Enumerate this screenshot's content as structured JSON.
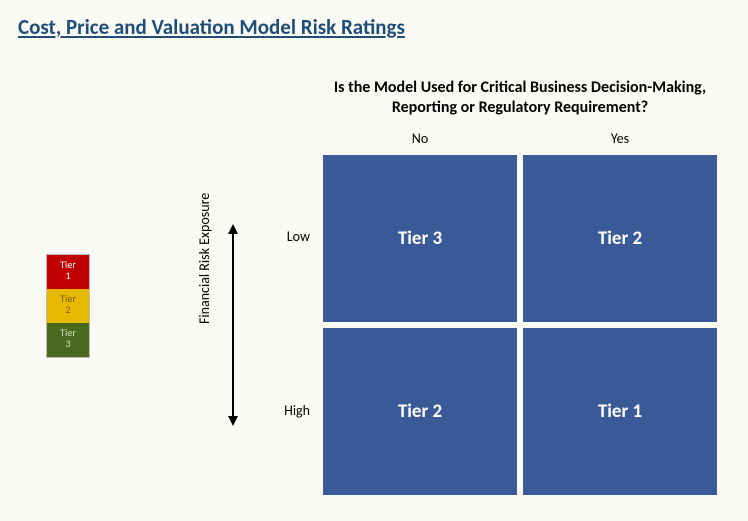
{
  "title": {
    "text": "Cost, Price and Valuation Model Risk Ratings",
    "color": "#1f4e79"
  },
  "question": "Is the Model Used for Critical Business Decision-Making, Reporting or Regulatory Requirement?",
  "columns": [
    "No",
    "Yes"
  ],
  "rows": [
    "Low",
    "High"
  ],
  "yaxis_label": "Financial Risk Exposure",
  "matrix": {
    "cells": [
      {
        "label": "Tier 3",
        "bg": "#3a5b97"
      },
      {
        "label": "Tier 2",
        "bg": "#3a5b97"
      },
      {
        "label": "Tier 2",
        "bg": "#3a5b97"
      },
      {
        "label": "Tier 1",
        "bg": "#3a5b97"
      }
    ],
    "gap_color": "#fbfaf4",
    "text_color": "#ffffff"
  },
  "legend": {
    "items": [
      {
        "label": "Tier 1",
        "bg": "#c00000",
        "fg": "#ffffff"
      },
      {
        "label": "Tier 2",
        "bg": "#e6b800",
        "fg": "#7a5c00"
      },
      {
        "label": "Tier 3",
        "bg": "#4a6b1f",
        "fg": "#cfe0b8"
      }
    ]
  },
  "background_color": "#fbfaf4"
}
